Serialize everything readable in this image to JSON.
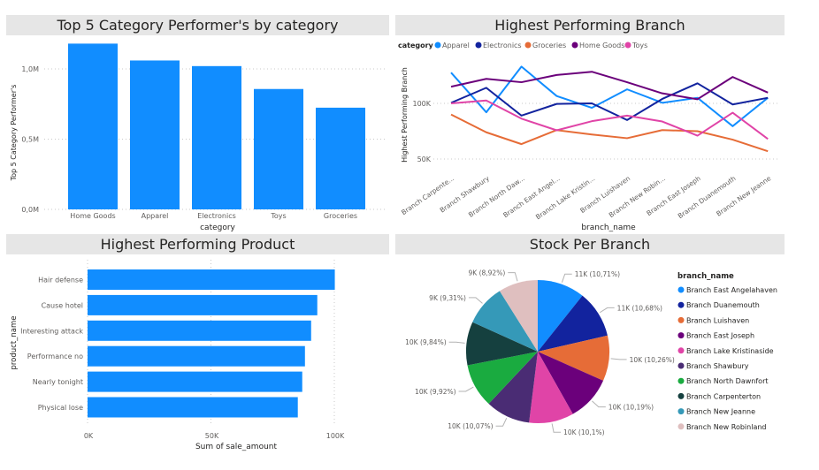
{
  "chart_data": [
    {
      "type": "bar",
      "title": "Top 5 Category Performer's by category",
      "xlabel": "category",
      "ylabel": "Top 5 Category Performer's",
      "categories": [
        "Home Goods",
        "Apparel",
        "Electronics",
        "Toys",
        "Groceries"
      ],
      "values": [
        1180000,
        1060000,
        1020000,
        857000,
        724000
      ],
      "yticks": [
        "0,0M",
        "0,5M",
        "1,0M"
      ],
      "ylim": [
        0,
        1200000
      ],
      "grid": true,
      "color": "#118DFF"
    },
    {
      "type": "line",
      "title": "Highest Performing Branch",
      "xlabel": "branch_name",
      "ylabel": "Highest Performing Branch",
      "legend_title": "category",
      "legend_position": "top-left",
      "categories": [
        "Branch Carpenterton",
        "Branch Shawbury",
        "Branch North Dawnfort",
        "Branch East Angelahaven",
        "Branch Lake Kristinaside",
        "Branch Luishaven",
        "Branch New Robinland",
        "Branch East Joseph",
        "Branch Duanemouth",
        "Branch New Jeanne"
      ],
      "category_labels": [
        "Branch Carpente...",
        "Branch Shawbury",
        "Branch North Daw...",
        "Branch East Angel...",
        "Branch Lake Kristin...",
        "Branch Luishaven",
        "Branch New Robin...",
        "Branch East Joseph",
        "Branch Duanemouth",
        "Branch New Jeanne"
      ],
      "yticks": [
        "50K",
        "100K"
      ],
      "grid": true,
      "series": [
        {
          "name": "Apparel",
          "color": "#118DFF",
          "values": [
            127600,
            92000,
            133000,
            106600,
            96000,
            112600,
            100500,
            105000,
            79500,
            105000
          ]
        },
        {
          "name": "Electronics",
          "color": "#12239E",
          "values": [
            100500,
            114000,
            89000,
            99500,
            100000,
            85000,
            104000,
            118000,
            99000,
            105000
          ]
        },
        {
          "name": "Groceries",
          "color": "#E66C37",
          "values": [
            90000,
            74000,
            63400,
            76000,
            72000,
            68700,
            76000,
            75000,
            67400,
            57000
          ]
        },
        {
          "name": "Home Goods",
          "color": "#6B007B",
          "values": [
            115000,
            122000,
            119000,
            125500,
            128400,
            119000,
            109000,
            103700,
            123700,
            109700
          ]
        },
        {
          "name": "Toys",
          "color": "#E044A7",
          "values": [
            100000,
            102600,
            86300,
            75800,
            84000,
            89000,
            83700,
            71000,
            91600,
            68000
          ]
        }
      ]
    },
    {
      "type": "bar",
      "orientation": "horizontal",
      "title": "Highest Performing Product",
      "xlabel": "Sum of sale_amount",
      "ylabel": "product_name",
      "categories": [
        "Hair defense",
        "Cause hotel",
        "Interesting attack",
        "Performance no",
        "Nearly tonight",
        "Physical lose"
      ],
      "values": [
        100200,
        93100,
        90600,
        88100,
        87000,
        85200
      ],
      "xticks": [
        "0K",
        "50K",
        "100K"
      ],
      "xlim": [
        0,
        100000
      ],
      "grid": true,
      "color": "#118DFF"
    },
    {
      "type": "pie",
      "title": "Stock Per Branch",
      "legend_title": "branch_name",
      "legend_position": "right",
      "slices": [
        {
          "name": "Branch East Angelahaven",
          "percent": 10.71,
          "label": "11K (10,71%)",
          "color": "#118DFF"
        },
        {
          "name": "Branch Duanemouth",
          "percent": 10.68,
          "label": "11K (10,68%)",
          "color": "#12239E"
        },
        {
          "name": "Branch Luishaven",
          "percent": 10.26,
          "label": "10K (10,26%)",
          "color": "#E66C37"
        },
        {
          "name": "Branch East Joseph",
          "percent": 10.19,
          "label": "10K (10,19%)",
          "color": "#6B007B"
        },
        {
          "name": "Branch Lake Kristinaside",
          "percent": 10.1,
          "label": "10K (10,1%)",
          "color": "#E044A7"
        },
        {
          "name": "Branch Shawbury",
          "percent": 10.07,
          "label": "10K (10,07%)",
          "color": "#4A2C74"
        },
        {
          "name": "Branch North Dawnfort",
          "percent": 9.92,
          "label": "10K (9,92%)",
          "color": "#1AAB40"
        },
        {
          "name": "Branch Carpenterton",
          "percent": 9.84,
          "label": "10K (9,84%)",
          "color": "#15403F"
        },
        {
          "name": "Branch New Jeanne",
          "percent": 9.31,
          "label": "9K (9,31%)",
          "color": "#3599B8"
        },
        {
          "name": "Branch New Robinland",
          "percent": 8.92,
          "label": "9K (8,92%)",
          "color": "#DFBFBF"
        }
      ]
    }
  ]
}
